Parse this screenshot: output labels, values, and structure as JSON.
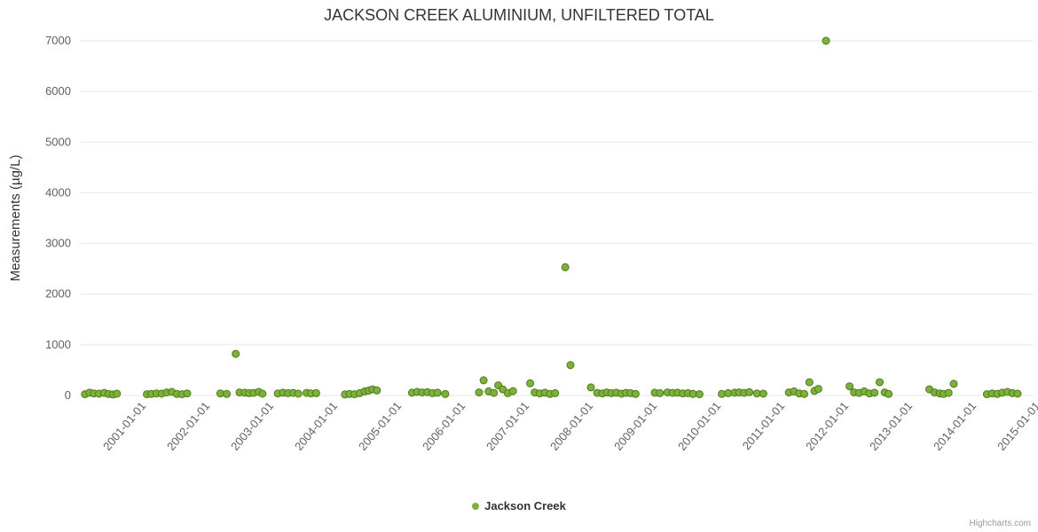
{
  "title": "JACKSON CREEK ALUMINIUM, UNFILTERED TOTAL",
  "legend": {
    "label": "Jackson Creek"
  },
  "credits": "Highcharts.com",
  "colors": {
    "point_fill": "#7cb13e",
    "point_stroke": "#527a1a",
    "grid": "#e6e6e6",
    "axis_label": "#606060",
    "title": "#333333",
    "credits": "#999999"
  },
  "chart_data": {
    "type": "scatter",
    "title": "JACKSON CREEK ALUMINIUM, UNFILTERED TOTAL",
    "xlabel": "",
    "ylabel": "Measurements (µg/L)",
    "ylim": [
      0,
      7000
    ],
    "yticks": [
      0,
      1000,
      2000,
      3000,
      4000,
      5000,
      6000,
      7000
    ],
    "xlim": [
      2000.0,
      2014.93
    ],
    "xtick_positions": [
      2001,
      2002,
      2003,
      2004,
      2005,
      2006,
      2007,
      2008,
      2009,
      2010,
      2011,
      2012,
      2013,
      2014,
      2015
    ],
    "xtick_labels": [
      "2001-01-01",
      "2002-01-01",
      "2003-01-01",
      "2004-01-01",
      "2005-01-01",
      "2006-01-01",
      "2007-01-01",
      "2008-01-01",
      "2009-01-01",
      "2010-01-01",
      "2011-01-01",
      "2012-01-01",
      "2013-01-01",
      "2014-01-01",
      "2015-01-01"
    ],
    "grid": true,
    "legend_position": "bottom-center",
    "series": [
      {
        "name": "Jackson Creek",
        "color": "#7cb13e",
        "points": [
          [
            2000.08,
            25
          ],
          [
            2000.15,
            55
          ],
          [
            2000.22,
            40
          ],
          [
            2000.3,
            35
          ],
          [
            2000.38,
            50
          ],
          [
            2000.45,
            30
          ],
          [
            2000.52,
            20
          ],
          [
            2000.58,
            35
          ],
          [
            2001.05,
            25
          ],
          [
            2001.12,
            30
          ],
          [
            2001.2,
            40
          ],
          [
            2001.28,
            35
          ],
          [
            2001.36,
            60
          ],
          [
            2001.44,
            70
          ],
          [
            2001.52,
            30
          ],
          [
            2001.6,
            25
          ],
          [
            2001.68,
            40
          ],
          [
            2002.2,
            40
          ],
          [
            2002.3,
            30
          ],
          [
            2002.44,
            820
          ],
          [
            2002.5,
            60
          ],
          [
            2002.58,
            55
          ],
          [
            2002.65,
            45
          ],
          [
            2002.72,
            50
          ],
          [
            2002.8,
            70
          ],
          [
            2002.86,
            35
          ],
          [
            2003.1,
            40
          ],
          [
            2003.18,
            55
          ],
          [
            2003.26,
            45
          ],
          [
            2003.34,
            50
          ],
          [
            2003.42,
            35
          ],
          [
            2003.55,
            50
          ],
          [
            2003.62,
            40
          ],
          [
            2003.7,
            45
          ],
          [
            2004.15,
            20
          ],
          [
            2004.22,
            30
          ],
          [
            2004.3,
            25
          ],
          [
            2004.38,
            45
          ],
          [
            2004.46,
            80
          ],
          [
            2004.52,
            95
          ],
          [
            2004.58,
            120
          ],
          [
            2004.65,
            100
          ],
          [
            2005.2,
            55
          ],
          [
            2005.28,
            70
          ],
          [
            2005.36,
            60
          ],
          [
            2005.44,
            65
          ],
          [
            2005.52,
            45
          ],
          [
            2005.6,
            55
          ],
          [
            2005.72,
            30
          ],
          [
            2006.25,
            60
          ],
          [
            2006.32,
            300
          ],
          [
            2006.4,
            80
          ],
          [
            2006.48,
            50
          ],
          [
            2006.55,
            200
          ],
          [
            2006.62,
            120
          ],
          [
            2006.7,
            45
          ],
          [
            2006.78,
            85
          ],
          [
            2007.05,
            240
          ],
          [
            2007.12,
            60
          ],
          [
            2007.2,
            40
          ],
          [
            2007.28,
            55
          ],
          [
            2007.36,
            30
          ],
          [
            2007.44,
            45
          ],
          [
            2007.6,
            2530
          ],
          [
            2007.68,
            600
          ],
          [
            2008.0,
            160
          ],
          [
            2008.1,
            50
          ],
          [
            2008.18,
            40
          ],
          [
            2008.25,
            60
          ],
          [
            2008.32,
            45
          ],
          [
            2008.4,
            55
          ],
          [
            2008.48,
            35
          ],
          [
            2008.55,
            50
          ],
          [
            2008.62,
            45
          ],
          [
            2008.7,
            30
          ],
          [
            2009.0,
            55
          ],
          [
            2009.08,
            45
          ],
          [
            2009.2,
            60
          ],
          [
            2009.28,
            50
          ],
          [
            2009.36,
            55
          ],
          [
            2009.44,
            40
          ],
          [
            2009.52,
            45
          ],
          [
            2009.6,
            30
          ],
          [
            2009.7,
            25
          ],
          [
            2010.05,
            30
          ],
          [
            2010.15,
            45
          ],
          [
            2010.25,
            55
          ],
          [
            2010.32,
            60
          ],
          [
            2010.4,
            50
          ],
          [
            2010.48,
            65
          ],
          [
            2010.6,
            40
          ],
          [
            2010.7,
            35
          ],
          [
            2011.1,
            60
          ],
          [
            2011.18,
            80
          ],
          [
            2011.26,
            40
          ],
          [
            2011.34,
            30
          ],
          [
            2011.42,
            260
          ],
          [
            2011.5,
            90
          ],
          [
            2011.56,
            130
          ],
          [
            2011.68,
            7000
          ],
          [
            2012.05,
            180
          ],
          [
            2012.12,
            60
          ],
          [
            2012.2,
            50
          ],
          [
            2012.28,
            80
          ],
          [
            2012.36,
            40
          ],
          [
            2012.44,
            55
          ],
          [
            2012.52,
            260
          ],
          [
            2012.6,
            60
          ],
          [
            2012.66,
            30
          ],
          [
            2013.3,
            120
          ],
          [
            2013.38,
            60
          ],
          [
            2013.46,
            40
          ],
          [
            2013.52,
            30
          ],
          [
            2013.6,
            50
          ],
          [
            2013.68,
            230
          ],
          [
            2014.2,
            25
          ],
          [
            2014.28,
            40
          ],
          [
            2014.36,
            30
          ],
          [
            2014.44,
            55
          ],
          [
            2014.52,
            70
          ],
          [
            2014.6,
            45
          ],
          [
            2014.68,
            35
          ]
        ]
      }
    ]
  }
}
